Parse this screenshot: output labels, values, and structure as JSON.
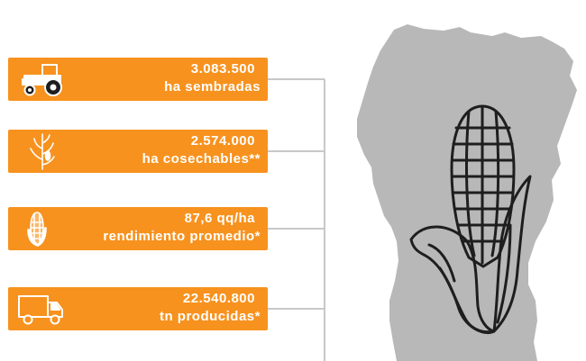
{
  "stats": [
    {
      "value": "3.083.500",
      "label": "ha sembradas",
      "icon": "tractor-icon"
    },
    {
      "value": "2.574.000",
      "label": "ha cosechables**",
      "icon": "corn-plant-icon"
    },
    {
      "value": "87,6 qq/ha",
      "label": "rendimiento promedio*",
      "icon": "corn-cob-icon"
    },
    {
      "value": "22.540.800",
      "label": "tn producidas*",
      "icon": "truck-icon"
    }
  ],
  "colors": {
    "box": "#f7921e",
    "map": "#b8b8b8",
    "connector": "#c8c8c8",
    "text": "#ffffff"
  },
  "illustration": {
    "map_icon": "province-map-icon",
    "corn_icon": "corn-cob-outline-icon"
  }
}
